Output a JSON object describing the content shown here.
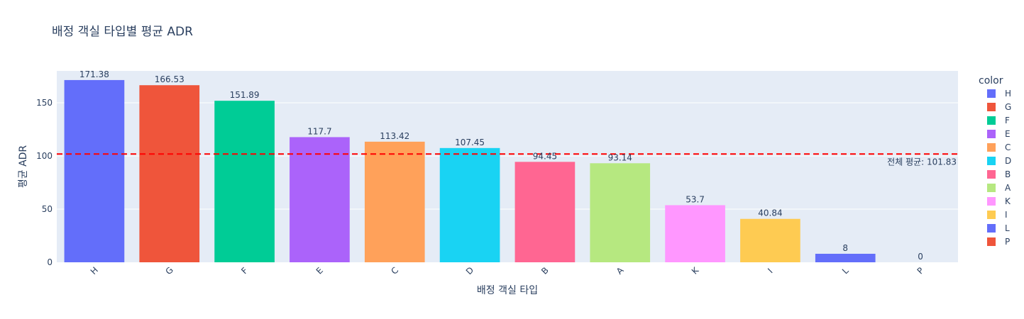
{
  "chart_data": {
    "type": "bar",
    "title": "배정 객실 타입별 평균 ADR",
    "xlabel": "배정 객실 타입",
    "ylabel": "평균 ADR",
    "categories": [
      "H",
      "G",
      "F",
      "E",
      "C",
      "D",
      "B",
      "A",
      "K",
      "I",
      "L",
      "P"
    ],
    "values": [
      171.38,
      166.53,
      151.89,
      117.7,
      113.42,
      107.45,
      94.45,
      93.14,
      53.7,
      40.84,
      8,
      0
    ],
    "value_labels": [
      "171.38",
      "166.53",
      "151.89",
      "117.7",
      "113.42",
      "107.45",
      "94.45",
      "93.14",
      "53.7",
      "40.84",
      "8",
      "0"
    ],
    "colors": [
      "#636efa",
      "#EF553B",
      "#00cc96",
      "#ab63fa",
      "#FFA15A",
      "#19d3f3",
      "#FF6692",
      "#B6E880",
      "#FF97FF",
      "#FECB52",
      "#636efa",
      "#EF553B"
    ],
    "ylim": [
      0,
      180
    ],
    "yticks": [
      0,
      50,
      100,
      150
    ],
    "ytick_labels": [
      "0",
      "50",
      "100",
      "150"
    ],
    "grid": true,
    "legend": {
      "title": "color",
      "placement": "right",
      "entries": [
        "H",
        "G",
        "F",
        "E",
        "C",
        "D",
        "B",
        "A",
        "K",
        "I",
        "L",
        "P"
      ]
    },
    "reference_line": {
      "value": 101.83,
      "label": "전체 평균: 101.83",
      "color": "#ff0000",
      "style": "dashed"
    }
  }
}
